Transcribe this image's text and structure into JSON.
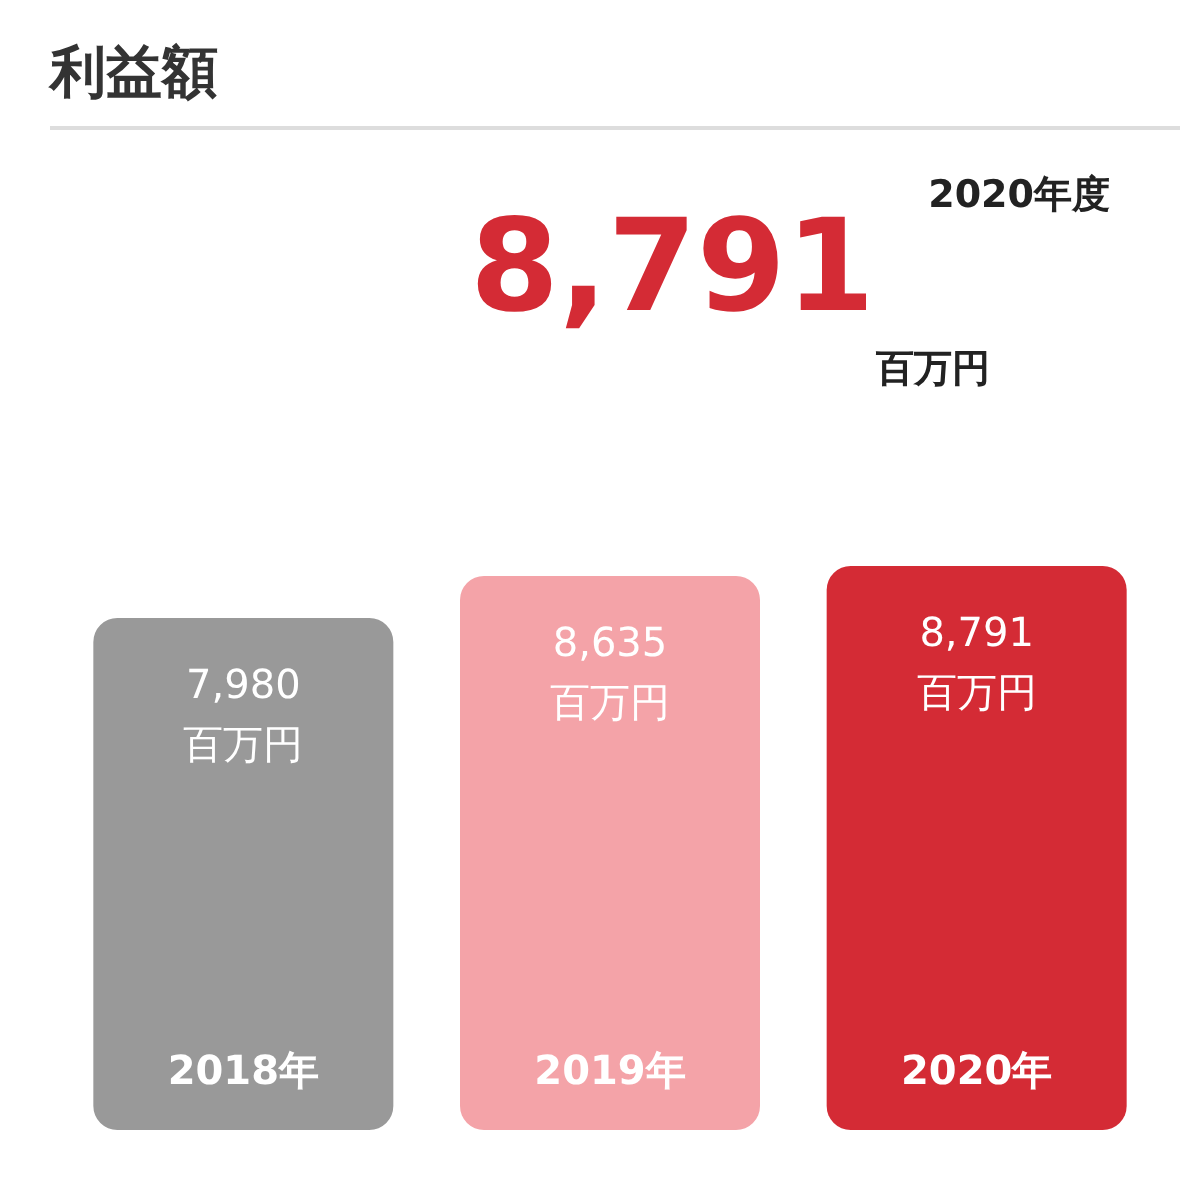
{
  "chart_data": {
    "type": "bar",
    "title": "利益額",
    "annotations": [
      "2020年度",
      "8,791",
      "百万円"
    ],
    "categories": [
      "2018年",
      "2019年",
      "2020年"
    ],
    "values": [
      7980,
      8635,
      8791
    ],
    "colors": [
      "#999999",
      "#f4a3a8",
      "#d42b35"
    ],
    "value_labels": [
      "7,980\n百万円",
      "8,635\n百万円",
      "8,791\n百万円"
    ],
    "data_labels": false
  }
}
